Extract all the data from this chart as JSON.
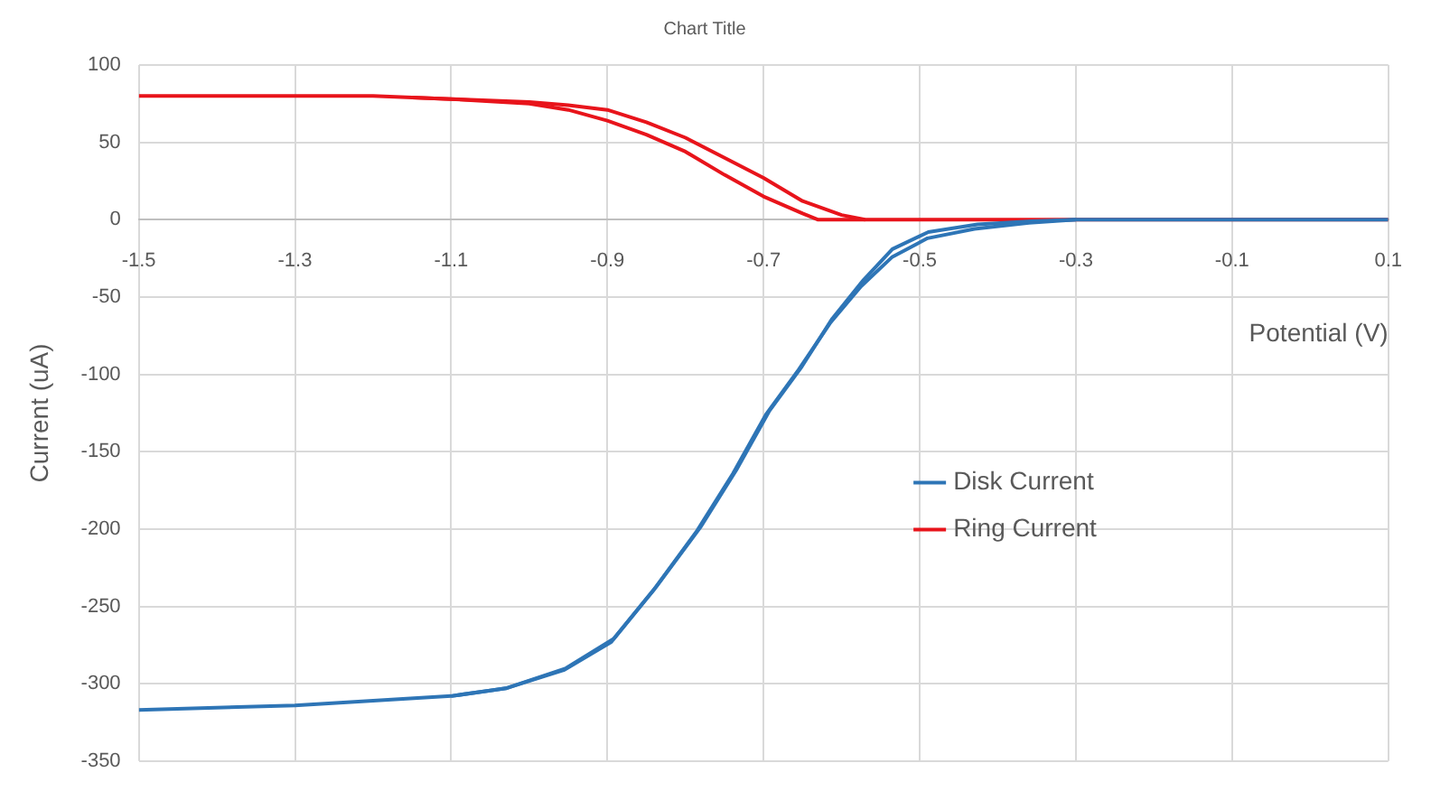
{
  "chart_data": {
    "type": "line",
    "title": "Chart Title",
    "xlabel": "Potential (V)",
    "ylabel": "Current (uA)",
    "xlim": [
      -1.5,
      0.1
    ],
    "xticks": [
      -1.5,
      -1.3,
      -1.1,
      -0.9,
      -0.7,
      -0.5,
      -0.3,
      -0.1,
      0.1
    ],
    "ylim": [
      -350,
      100
    ],
    "yticks": [
      -350,
      -300,
      -250,
      -200,
      -150,
      -100,
      -50,
      0,
      50,
      100
    ],
    "grid": true,
    "legend": "right",
    "marker": "none",
    "line_style": "solid",
    "series": [
      {
        "name": "Disk Current",
        "color": "#2e75b6",
        "x": [
          -1.5,
          -1.3,
          -1.1,
          -1.03,
          -0.953,
          -0.892,
          -0.837,
          -0.781,
          -0.735,
          -0.693,
          -0.651,
          -0.612,
          -0.572,
          -0.535,
          -0.489,
          -0.426,
          -0.357,
          -0.3,
          0.1
        ],
        "values": [
          -317,
          -314,
          -308,
          -303,
          -290,
          -271,
          -237,
          -199,
          -162,
          -124,
          -95,
          -64,
          -39,
          -19,
          -8,
          -3,
          -1,
          0,
          0
        ]
      },
      {
        "color": "#2e75b6",
        "x": [
          -1.1,
          -1.03,
          -0.955,
          -0.895,
          -0.84,
          -0.785,
          -0.739,
          -0.697,
          -0.655,
          -0.615,
          -0.575,
          -0.535,
          -0.49,
          -0.43,
          -0.36,
          -0.3
        ],
        "values": [
          -308,
          -303,
          -291,
          -273,
          -239,
          -201,
          -164,
          -126,
          -97,
          -67,
          -43,
          -24,
          -12,
          -6,
          -2,
          0
        ]
      },
      {
        "name": "Ring Current",
        "color": "#e8141b",
        "x": [
          -1.5,
          -1.2,
          -1.1,
          -1.0,
          -0.95,
          -0.9,
          -0.85,
          -0.8,
          -0.75,
          -0.7,
          -0.65,
          -0.6,
          -0.57,
          0.1
        ],
        "values": [
          80,
          80,
          78,
          76,
          74,
          71,
          63,
          53,
          40,
          27,
          12,
          3,
          0,
          0
        ]
      },
      {
        "color": "#e8141b",
        "x": [
          -1.15,
          -1.1,
          -1.0,
          -0.95,
          -0.9,
          -0.85,
          -0.8,
          -0.75,
          -0.7,
          -0.65,
          -0.63,
          -0.57
        ],
        "values": [
          79,
          78,
          75,
          71,
          64,
          55,
          44,
          29,
          15,
          4,
          0,
          0
        ]
      }
    ]
  }
}
